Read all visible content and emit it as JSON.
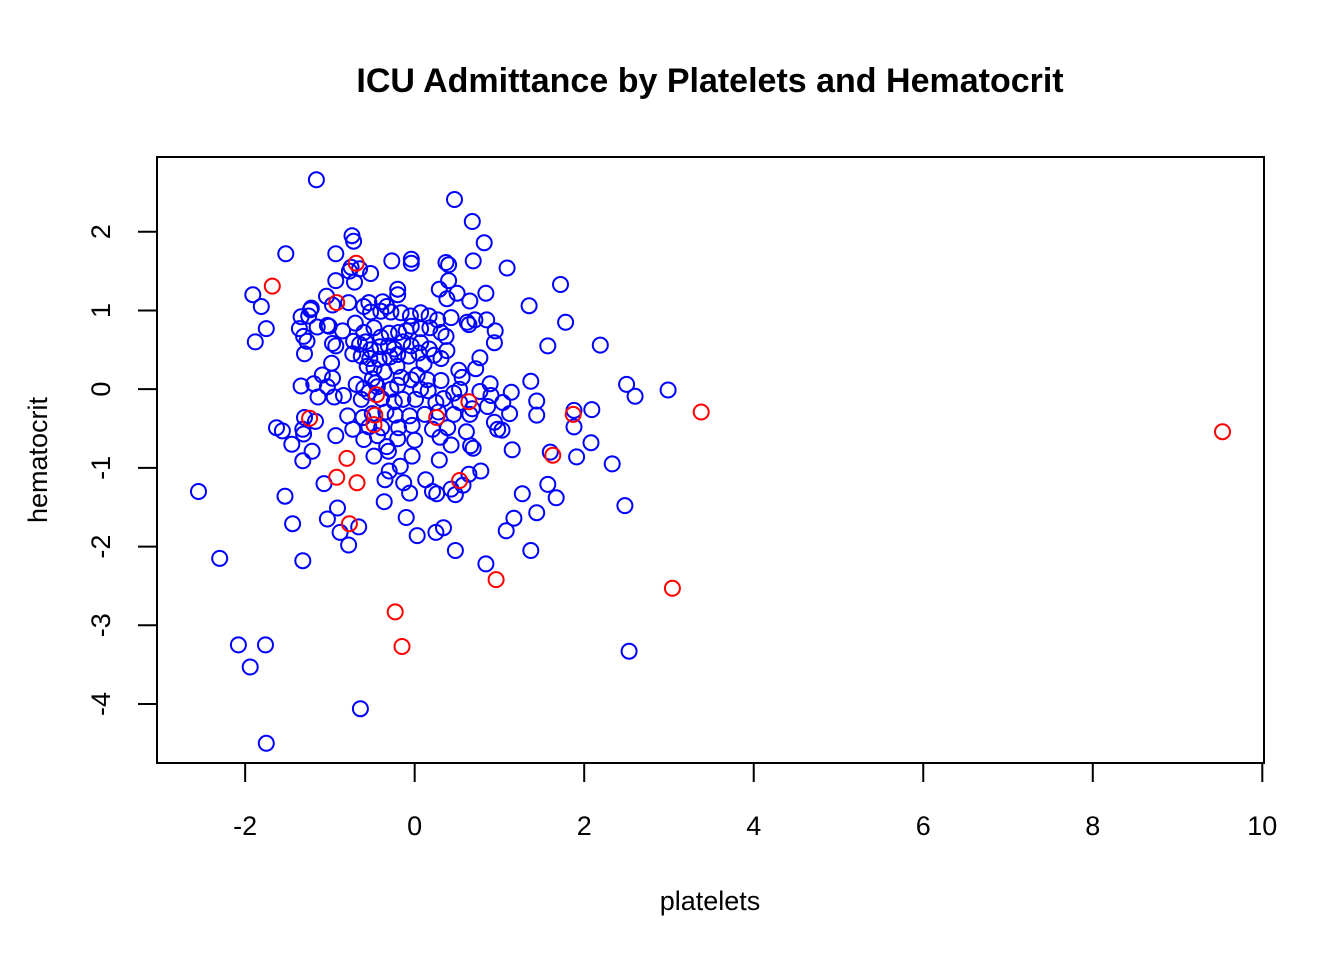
{
  "chart_data": {
    "type": "scatter",
    "title": "ICU Admittance by Platelets and Hematocrit",
    "xlabel": "platelets",
    "ylabel": "hematocrit",
    "xlim": [
      -3.04,
      10.02
    ],
    "ylim": [
      -4.75,
      2.95
    ],
    "xticks": [
      -2,
      0,
      2,
      4,
      6,
      8,
      10
    ],
    "yticks": [
      -4,
      -3,
      -2,
      -1,
      0,
      1,
      2
    ],
    "xtick_labels": [
      "-2",
      "0",
      "2",
      "4",
      "6",
      "8",
      "10"
    ],
    "ytick_labels": [
      "-4",
      "-3",
      "-2",
      "-1",
      "0",
      "1",
      "2"
    ],
    "grid": false,
    "legend": "none",
    "colors": {
      "not_admitted": "#0000ff",
      "admitted": "#ff0000"
    },
    "series": [
      {
        "color": "#0000ff",
        "points": [
          [
            -1.16,
            2.66
          ],
          [
            0.47,
            2.41
          ],
          [
            0.68,
            2.13
          ],
          [
            -0.74,
            1.95
          ],
          [
            -0.72,
            1.88
          ],
          [
            0.82,
            1.86
          ],
          [
            -1.52,
            1.72
          ],
          [
            -0.93,
            1.72
          ],
          [
            -0.27,
            1.63
          ],
          [
            -0.04,
            1.65
          ],
          [
            -0.04,
            1.6
          ],
          [
            0.37,
            1.61
          ],
          [
            0.4,
            1.58
          ],
          [
            0.69,
            1.63
          ],
          [
            -0.75,
            1.55
          ],
          [
            -0.65,
            1.53
          ],
          [
            -0.52,
            1.47
          ],
          [
            -0.77,
            1.5
          ],
          [
            1.09,
            1.54
          ],
          [
            0.4,
            1.38
          ],
          [
            -0.93,
            1.38
          ],
          [
            -0.71,
            1.36
          ],
          [
            1.72,
            1.33
          ],
          [
            -1.91,
            1.2
          ],
          [
            -1.04,
            1.18
          ],
          [
            -0.54,
            1.1
          ],
          [
            -0.38,
            1.11
          ],
          [
            -0.33,
            1.05
          ],
          [
            -0.2,
            1.2
          ],
          [
            -0.2,
            1.27
          ],
          [
            0.29,
            1.27
          ],
          [
            0.38,
            1.15
          ],
          [
            0.5,
            1.22
          ],
          [
            0.65,
            1.12
          ],
          [
            0.84,
            1.22
          ],
          [
            1.35,
            1.06
          ],
          [
            -1.81,
            1.05
          ],
          [
            -1.22,
            1.03
          ],
          [
            -1.23,
            1.01
          ],
          [
            -1.34,
            0.92
          ],
          [
            -1.25,
            0.93
          ],
          [
            -0.97,
            1.07
          ],
          [
            -0.78,
            1.1
          ],
          [
            -0.6,
            1.05
          ],
          [
            -0.52,
            0.98
          ],
          [
            -0.4,
            0.99
          ],
          [
            -0.28,
            0.98
          ],
          [
            -0.16,
            0.97
          ],
          [
            -0.05,
            0.93
          ],
          [
            0.07,
            0.97
          ],
          [
            0.17,
            0.93
          ],
          [
            0.27,
            0.88
          ],
          [
            0.43,
            0.91
          ],
          [
            0.62,
            0.85
          ],
          [
            0.71,
            0.88
          ],
          [
            0.85,
            0.88
          ],
          [
            1.78,
            0.85
          ],
          [
            -1.75,
            0.77
          ],
          [
            -1.36,
            0.77
          ],
          [
            -1.15,
            0.79
          ],
          [
            -1.03,
            0.81
          ],
          [
            -1.01,
            0.8
          ],
          [
            -0.85,
            0.74
          ],
          [
            -0.7,
            0.84
          ],
          [
            -0.6,
            0.72
          ],
          [
            -0.48,
            0.78
          ],
          [
            -0.4,
            0.66
          ],
          [
            -0.3,
            0.71
          ],
          [
            -0.19,
            0.72
          ],
          [
            -0.1,
            0.74
          ],
          [
            -0.04,
            0.8
          ],
          [
            0.07,
            0.77
          ],
          [
            0.18,
            0.78
          ],
          [
            0.31,
            0.72
          ],
          [
            0.37,
            0.67
          ],
          [
            0.64,
            0.82
          ],
          [
            0.95,
            0.74
          ],
          [
            -1.88,
            0.6
          ],
          [
            -1.31,
            0.67
          ],
          [
            -1.27,
            0.61
          ],
          [
            -0.97,
            0.58
          ],
          [
            -0.93,
            0.55
          ],
          [
            -0.72,
            0.61
          ],
          [
            -0.65,
            0.57
          ],
          [
            -0.58,
            0.6
          ],
          [
            -0.52,
            0.5
          ],
          [
            -0.41,
            0.54
          ],
          [
            -0.31,
            0.55
          ],
          [
            -0.24,
            0.51
          ],
          [
            -0.14,
            0.6
          ],
          [
            -0.04,
            0.55
          ],
          [
            0.07,
            0.59
          ],
          [
            0.17,
            0.51
          ],
          [
            0.38,
            0.49
          ],
          [
            0.94,
            0.59
          ],
          [
            1.57,
            0.55
          ],
          [
            2.19,
            0.56
          ],
          [
            -1.3,
            0.45
          ],
          [
            -0.73,
            0.45
          ],
          [
            -0.63,
            0.42
          ],
          [
            -0.53,
            0.39
          ],
          [
            -0.42,
            0.38
          ],
          [
            -0.29,
            0.41
          ],
          [
            -0.2,
            0.44
          ],
          [
            -0.07,
            0.42
          ],
          [
            0.05,
            0.46
          ],
          [
            0.23,
            0.43
          ],
          [
            0.31,
            0.39
          ],
          [
            0.77,
            0.4
          ],
          [
            -0.98,
            0.33
          ],
          [
            -0.56,
            0.29
          ],
          [
            -0.48,
            0.27
          ],
          [
            -0.36,
            0.22
          ],
          [
            -0.21,
            0.29
          ],
          [
            0.11,
            0.32
          ],
          [
            0.52,
            0.24
          ],
          [
            0.72,
            0.26
          ],
          [
            -1.09,
            0.18
          ],
          [
            -0.97,
            0.14
          ],
          [
            -0.5,
            0.13
          ],
          [
            -0.46,
            0.08
          ],
          [
            -0.16,
            0.15
          ],
          [
            -0.04,
            0.12
          ],
          [
            0.03,
            0.18
          ],
          [
            0.15,
            0.12
          ],
          [
            0.31,
            0.11
          ],
          [
            0.56,
            0.15
          ],
          [
            0.89,
            0.07
          ],
          [
            1.37,
            0.1
          ],
          [
            -1.34,
            0.04
          ],
          [
            -1.19,
            0.07
          ],
          [
            -1.03,
            0.03
          ],
          [
            -0.69,
            0.06
          ],
          [
            -0.6,
            0.01
          ],
          [
            -0.54,
            -0.04
          ],
          [
            -0.44,
            0.03
          ],
          [
            -0.28,
            0.0
          ],
          [
            -0.2,
            0.05
          ],
          [
            0.07,
            0.0
          ],
          [
            0.16,
            -0.02
          ],
          [
            0.46,
            -0.05
          ],
          [
            0.77,
            -0.03
          ],
          [
            1.14,
            -0.04
          ],
          [
            2.5,
            0.06
          ],
          [
            2.99,
            -0.01
          ],
          [
            2.6,
            -0.09
          ],
          [
            -1.14,
            -0.1
          ],
          [
            -0.95,
            -0.1
          ],
          [
            -0.84,
            -0.08
          ],
          [
            -0.63,
            -0.13
          ],
          [
            -0.39,
            -0.12
          ],
          [
            -0.24,
            -0.16
          ],
          [
            -0.14,
            -0.13
          ],
          [
            0.01,
            -0.13
          ],
          [
            0.25,
            -0.17
          ],
          [
            0.34,
            -0.12
          ],
          [
            0.53,
            -0.17
          ],
          [
            0.68,
            -0.25
          ],
          [
            0.86,
            -0.22
          ],
          [
            1.04,
            -0.17
          ],
          [
            1.44,
            -0.15
          ],
          [
            1.88,
            -0.27
          ],
          [
            2.09,
            -0.26
          ],
          [
            -1.3,
            -0.36
          ],
          [
            -1.17,
            -0.41
          ],
          [
            -0.79,
            -0.34
          ],
          [
            -0.61,
            -0.36
          ],
          [
            -0.5,
            -0.31
          ],
          [
            -0.34,
            -0.29
          ],
          [
            -0.23,
            -0.33
          ],
          [
            -0.06,
            -0.34
          ],
          [
            0.12,
            -0.32
          ],
          [
            0.28,
            -0.29
          ],
          [
            0.46,
            -0.32
          ],
          [
            0.65,
            -0.32
          ],
          [
            0.94,
            -0.42
          ],
          [
            1.12,
            -0.31
          ],
          [
            1.44,
            -0.33
          ],
          [
            -1.63,
            -0.49
          ],
          [
            -1.56,
            -0.53
          ],
          [
            -1.32,
            -0.51
          ],
          [
            -1.31,
            -0.57
          ],
          [
            -0.93,
            -0.59
          ],
          [
            -0.73,
            -0.51
          ],
          [
            -0.54,
            -0.48
          ],
          [
            -0.39,
            -0.49
          ],
          [
            -0.19,
            -0.49
          ],
          [
            -0.03,
            -0.46
          ],
          [
            0.21,
            -0.51
          ],
          [
            0.39,
            -0.49
          ],
          [
            0.61,
            -0.54
          ],
          [
            0.98,
            -0.51
          ],
          [
            1.88,
            -0.48
          ],
          [
            -1.45,
            -0.7
          ],
          [
            -1.32,
            -0.91
          ],
          [
            -1.21,
            -0.79
          ],
          [
            -0.6,
            -0.64
          ],
          [
            -0.44,
            -0.59
          ],
          [
            -0.33,
            -0.73
          ],
          [
            -0.2,
            -0.63
          ],
          [
            0.0,
            -0.65
          ],
          [
            0.3,
            -0.61
          ],
          [
            0.43,
            -0.71
          ],
          [
            0.66,
            -0.72
          ],
          [
            0.69,
            -0.75
          ],
          [
            1.15,
            -0.77
          ],
          [
            -0.48,
            -0.85
          ],
          [
            -0.31,
            -0.79
          ],
          [
            -0.03,
            -0.85
          ],
          [
            0.29,
            -0.9
          ],
          [
            1.91,
            -0.86
          ],
          [
            2.33,
            -0.95
          ],
          [
            -0.3,
            -1.04
          ],
          [
            -0.17,
            -0.98
          ],
          [
            0.13,
            -1.15
          ],
          [
            0.64,
            -1.08
          ],
          [
            0.78,
            -1.04
          ],
          [
            1.6,
            -0.8
          ],
          [
            2.08,
            -0.68
          ],
          [
            -1.07,
            -1.2
          ],
          [
            -0.35,
            -1.15
          ],
          [
            -0.13,
            -1.19
          ],
          [
            0.21,
            -1.3
          ],
          [
            0.43,
            -1.27
          ],
          [
            0.57,
            -1.22
          ],
          [
            -2.55,
            -1.3
          ],
          [
            -1.53,
            -1.36
          ],
          [
            -0.36,
            -1.43
          ],
          [
            -0.06,
            -1.32
          ],
          [
            0.26,
            -1.33
          ],
          [
            0.48,
            -1.34
          ],
          [
            1.57,
            -1.21
          ],
          [
            1.67,
            -1.38
          ],
          [
            2.48,
            -1.48
          ],
          [
            1.27,
            -1.33
          ],
          [
            -0.91,
            -1.51
          ],
          [
            -1.03,
            -1.65
          ],
          [
            -0.66,
            -1.75
          ],
          [
            -0.88,
            -1.82
          ],
          [
            -0.1,
            -1.63
          ],
          [
            0.25,
            -1.82
          ],
          [
            0.34,
            -1.76
          ],
          [
            1.17,
            -1.64
          ],
          [
            1.08,
            -1.8
          ],
          [
            -1.44,
            -1.71
          ],
          [
            -0.78,
            -1.98
          ],
          [
            0.03,
            -1.86
          ],
          [
            0.48,
            -2.05
          ],
          [
            1.37,
            -2.05
          ],
          [
            -2.3,
            -2.15
          ],
          [
            -1.32,
            -2.18
          ],
          [
            0.84,
            -2.22
          ],
          [
            -2.08,
            -3.25
          ],
          [
            -1.76,
            -3.25
          ],
          [
            -1.94,
            -3.53
          ],
          [
            2.53,
            -3.33
          ],
          [
            -0.64,
            -4.06
          ],
          [
            -1.75,
            -4.5
          ],
          [
            1.44,
            -1.57
          ],
          [
            1.03,
            -0.52
          ],
          [
            0.53,
            0.0
          ],
          [
            0.9,
            -0.08
          ]
        ]
      },
      {
        "color": "#ff0000",
        "points": [
          [
            -1.68,
            1.31
          ],
          [
            -0.69,
            1.6
          ],
          [
            -0.92,
            1.1
          ],
          [
            -1.24,
            -0.37
          ],
          [
            -0.45,
            -0.07
          ],
          [
            -0.47,
            -0.33
          ],
          [
            -0.48,
            -0.45
          ],
          [
            0.26,
            -0.36
          ],
          [
            0.64,
            -0.16
          ],
          [
            1.87,
            -0.32
          ],
          [
            3.38,
            -0.29
          ],
          [
            9.53,
            -0.54
          ],
          [
            -0.8,
            -0.88
          ],
          [
            -0.92,
            -1.12
          ],
          [
            -0.68,
            -1.19
          ],
          [
            -0.77,
            -1.71
          ],
          [
            0.53,
            -1.16
          ],
          [
            1.63,
            -0.84
          ],
          [
            0.96,
            -2.42
          ],
          [
            3.04,
            -2.53
          ],
          [
            -0.23,
            -2.83
          ],
          [
            -0.15,
            -3.27
          ]
        ]
      }
    ]
  }
}
